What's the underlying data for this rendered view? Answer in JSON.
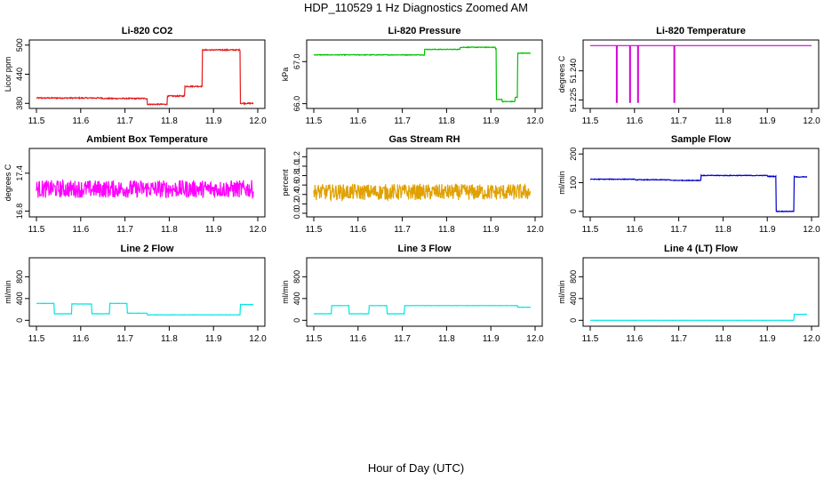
{
  "figure": {
    "title": "HDP_110529  1 Hz Diagnostics Zoomed AM",
    "xlabel": "Hour of Day (UTC)"
  },
  "chart_data": [
    {
      "id": "li820-co2",
      "type": "line",
      "title": "Li-820 CO2",
      "ylabel": "Licor ppm",
      "color": "#e41a1c",
      "x_range": [
        11.5,
        12.0
      ],
      "ylim": [
        375,
        505
      ],
      "xticks": [
        "11.5",
        "11.6",
        "11.7",
        "11.8",
        "11.9",
        "12.0"
      ],
      "xtick_values": [
        11.5,
        11.6,
        11.7,
        11.8,
        11.9,
        12.0
      ],
      "yticks": [
        "380",
        "440",
        "500"
      ],
      "ytick_values": [
        380,
        440,
        500
      ],
      "noise": 1.2,
      "steps": [
        [
          11.5,
          391
        ],
        [
          11.65,
          390
        ],
        [
          11.75,
          378
        ],
        [
          11.795,
          395
        ],
        [
          11.835,
          415
        ],
        [
          11.875,
          490
        ],
        [
          11.96,
          380
        ],
        [
          11.99,
          380
        ]
      ]
    },
    {
      "id": "li820-pressure",
      "type": "line",
      "title": "Li-820 Pressure",
      "ylabel": "kPa",
      "color": "#00c000",
      "x_range": [
        11.5,
        12.0
      ],
      "ylim": [
        65.95,
        67.45
      ],
      "xticks": [
        "11.5",
        "11.6",
        "11.7",
        "11.8",
        "11.9",
        "12.0"
      ],
      "xtick_values": [
        11.5,
        11.6,
        11.7,
        11.8,
        11.9,
        12.0
      ],
      "yticks": [
        "66.0",
        "67.0"
      ],
      "ytick_values": [
        66.0,
        67.0
      ],
      "noise": 0.008,
      "steps": [
        [
          11.5,
          67.16
        ],
        [
          11.75,
          67.29
        ],
        [
          11.78,
          67.29
        ],
        [
          11.83,
          67.34
        ],
        [
          11.91,
          67.3
        ],
        [
          11.912,
          66.1
        ],
        [
          11.925,
          66.05
        ],
        [
          11.955,
          66.15
        ],
        [
          11.96,
          67.2
        ],
        [
          11.99,
          67.2
        ]
      ]
    },
    {
      "id": "li820-temperature",
      "type": "line",
      "title": "Li-820 Temperature",
      "ylabel": "degrees C",
      "color": "#d400d4",
      "x_range": [
        11.5,
        12.0
      ],
      "ylim": [
        51.222,
        51.2545
      ],
      "xticks": [
        "11.5",
        "11.6",
        "11.7",
        "11.8",
        "11.9",
        "12.0"
      ],
      "xtick_values": [
        11.5,
        11.6,
        11.7,
        11.8,
        11.9,
        12.0
      ],
      "yticks": [
        "51.225",
        "51.240"
      ],
      "ytick_values": [
        51.225,
        51.24
      ],
      "noise": 0,
      "steps": [
        [
          11.5,
          51.253
        ],
        [
          12.0,
          51.253
        ]
      ],
      "spikes": [
        11.56,
        11.59,
        11.608,
        11.69
      ],
      "spike_floor": 51.2235
    },
    {
      "id": "ambient-box-temperature",
      "type": "line",
      "title": "Ambient Box Temperature",
      "ylabel": "degrees C",
      "color": "#ff00ff",
      "x_range": [
        11.5,
        12.0
      ],
      "ylim": [
        16.75,
        17.75
      ],
      "xticks": [
        "11.5",
        "11.6",
        "11.7",
        "11.8",
        "11.9",
        "12.0"
      ],
      "xtick_values": [
        11.5,
        11.6,
        11.7,
        11.8,
        11.9,
        12.0
      ],
      "yticks": [
        "16.8",
        "17.4"
      ],
      "ytick_values": [
        16.8,
        17.4
      ],
      "noise": 0.14,
      "steps": [
        [
          11.5,
          17.15
        ],
        [
          11.99,
          17.15
        ]
      ]
    },
    {
      "id": "gas-stream-rh",
      "type": "line",
      "title": "Gas Stream RH",
      "ylabel": "percent",
      "color": "#e0a000",
      "x_range": [
        11.5,
        12.0
      ],
      "ylim": [
        -0.02,
        1.32
      ],
      "xticks": [
        "11.5",
        "11.6",
        "11.7",
        "11.8",
        "11.9",
        "12.0"
      ],
      "xtick_values": [
        11.5,
        11.6,
        11.7,
        11.8,
        11.9,
        12.0
      ],
      "yticks": [
        "0.0",
        "0.2",
        "0.4",
        "0.6",
        "0.8",
        "1.0",
        "1.2"
      ],
      "ytick_values": [
        0.0,
        0.2,
        0.4,
        0.6,
        0.8,
        1.0,
        1.2
      ],
      "noise": 0.17,
      "steps": [
        [
          11.5,
          0.45
        ],
        [
          11.99,
          0.45
        ]
      ]
    },
    {
      "id": "sample-flow",
      "type": "line",
      "title": "Sample Flow",
      "ylabel": "ml/min",
      "color": "#0000cc",
      "x_range": [
        11.5,
        12.0
      ],
      "ylim": [
        -10,
        210
      ],
      "xticks": [
        "11.5",
        "11.6",
        "11.7",
        "11.8",
        "11.9",
        "12.0"
      ],
      "xtick_values": [
        11.5,
        11.6,
        11.7,
        11.8,
        11.9,
        12.0
      ],
      "yticks": [
        "0",
        "100",
        "200"
      ],
      "ytick_values": [
        0,
        100,
        200
      ],
      "noise": 1.2,
      "steps": [
        [
          11.5,
          112
        ],
        [
          11.6,
          110
        ],
        [
          11.68,
          108
        ],
        [
          11.75,
          125
        ],
        [
          11.9,
          122
        ],
        [
          11.92,
          0
        ],
        [
          11.955,
          0
        ],
        [
          11.96,
          120
        ],
        [
          11.99,
          120
        ]
      ]
    },
    {
      "id": "line-2-flow",
      "type": "line",
      "title": "Line 2 Flow",
      "ylabel": "ml/min",
      "color": "#00e5e5",
      "x_range": [
        11.5,
        12.0
      ],
      "ylim": [
        -60,
        1100
      ],
      "xticks": [
        "11.5",
        "11.6",
        "11.7",
        "11.8",
        "11.9",
        "12.0"
      ],
      "xtick_values": [
        11.5,
        11.6,
        11.7,
        11.8,
        11.9,
        12.0
      ],
      "yticks": [
        "0",
        "400",
        "800"
      ],
      "ytick_values": [
        0,
        400,
        800
      ],
      "noise": 3,
      "steps": [
        [
          11.5,
          310
        ],
        [
          11.54,
          120
        ],
        [
          11.58,
          300
        ],
        [
          11.625,
          120
        ],
        [
          11.665,
          310
        ],
        [
          11.705,
          130
        ],
        [
          11.75,
          100
        ],
        [
          11.96,
          290
        ],
        [
          11.99,
          290
        ]
      ]
    },
    {
      "id": "line-3-flow",
      "type": "line",
      "title": "Line 3 Flow",
      "ylabel": "ml/min",
      "color": "#00e5e5",
      "x_range": [
        11.5,
        12.0
      ],
      "ylim": [
        -60,
        1100
      ],
      "xticks": [
        "11.5",
        "11.6",
        "11.7",
        "11.8",
        "11.9",
        "12.0"
      ],
      "xtick_values": [
        11.5,
        11.6,
        11.7,
        11.8,
        11.9,
        12.0
      ],
      "yticks": [
        "0",
        "400",
        "800"
      ],
      "ytick_values": [
        0,
        400,
        800
      ],
      "noise": 2,
      "steps": [
        [
          11.5,
          120
        ],
        [
          11.54,
          270
        ],
        [
          11.58,
          120
        ],
        [
          11.625,
          270
        ],
        [
          11.665,
          120
        ],
        [
          11.705,
          270
        ],
        [
          11.96,
          240
        ],
        [
          11.99,
          240
        ]
      ]
    },
    {
      "id": "line-4-lt-flow",
      "type": "line",
      "title": "Line 4 (LT) Flow",
      "ylabel": "ml/min",
      "color": "#00e5e5",
      "x_range": [
        11.5,
        12.0
      ],
      "ylim": [
        -60,
        1100
      ],
      "xticks": [
        "11.5",
        "11.6",
        "11.7",
        "11.8",
        "11.9",
        "12.0"
      ],
      "xtick_values": [
        11.5,
        11.6,
        11.7,
        11.8,
        11.9,
        12.0
      ],
      "yticks": [
        "0",
        "400",
        "800"
      ],
      "ytick_values": [
        0,
        400,
        800
      ],
      "noise": 1,
      "steps": [
        [
          11.5,
          0
        ],
        [
          11.955,
          0
        ],
        [
          11.96,
          110
        ],
        [
          11.99,
          110
        ]
      ]
    }
  ]
}
